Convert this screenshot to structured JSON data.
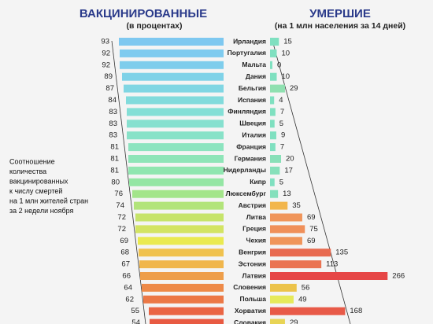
{
  "chart_data": {
    "type": "butterfly-bar",
    "left_title": "ВАКЦИНИРОВАННЫЕ",
    "left_subtitle": "(в процентах)",
    "right_title": "УМЕРШИЕ",
    "right_subtitle": "(на 1 млн населения за 14 дней)",
    "note": [
      "Соотношение",
      "количества",
      "вакцинированных",
      "к числу смертей",
      "на 1 млн жителей стран",
      "за 2 недели ноября"
    ],
    "categories": [
      "Ирландия",
      "Португалия",
      "Мальта",
      "Дания",
      "Бельгия",
      "Испания",
      "Финляндия",
      "Швеция",
      "Италия",
      "Франция",
      "Германия",
      "Нидерланды",
      "Кипр",
      "Люксембург",
      "Австрия",
      "Литва",
      "Греция",
      "Чехия",
      "Венгрия",
      "Эстония",
      "Латвия",
      "Словения",
      "Польша",
      "Хорватия",
      "Словакия"
    ],
    "series": [
      {
        "name": "ВАКЦИНИРОВАННЫЕ",
        "values": [
          93,
          92,
          92,
          89,
          87,
          84,
          83,
          83,
          83,
          81,
          81,
          81,
          80,
          76,
          74,
          72,
          72,
          69,
          68,
          67,
          66,
          64,
          62,
          55,
          54
        ],
        "colors": [
          "#7ec8f0",
          "#7ecbef",
          "#7ecdec",
          "#7fd2e8",
          "#80d6e3",
          "#82dbdc",
          "#84dfd6",
          "#86e0cf",
          "#88e2c8",
          "#8ce4bf",
          "#8ee5b8",
          "#90e6b0",
          "#94e6a4",
          "#a3e58a",
          "#b2e47a",
          "#c6e46a",
          "#d3e463",
          "#eaea50",
          "#f0c24e",
          "#f0b64c",
          "#ee9e4a",
          "#ee8a48",
          "#ec7846",
          "#ea6544",
          "#e85a42"
        ]
      },
      {
        "name": "УМЕРШИЕ",
        "values": [
          15,
          10,
          0,
          10,
          29,
          4,
          7,
          5,
          9,
          7,
          20,
          17,
          5,
          13,
          35,
          69,
          75,
          69,
          135,
          113,
          266,
          56,
          49,
          168,
          29
        ],
        "colors": [
          "#7fe0c0",
          "#7fe0c0",
          "#7fe0c0",
          "#7fe0c0",
          "#8fe0b0",
          "#7fe0c0",
          "#7fe0c0",
          "#7fe0c0",
          "#7fe0c0",
          "#7fe0c0",
          "#88e0b8",
          "#86e0ba",
          "#7fe0c0",
          "#84e0bc",
          "#f2b64c",
          "#f0955a",
          "#f0905a",
          "#f0955a",
          "#e86a50",
          "#ea7452",
          "#e64646",
          "#ecc34a",
          "#e6ea5a",
          "#e85a48",
          "#e8d455"
        ]
      }
    ]
  }
}
